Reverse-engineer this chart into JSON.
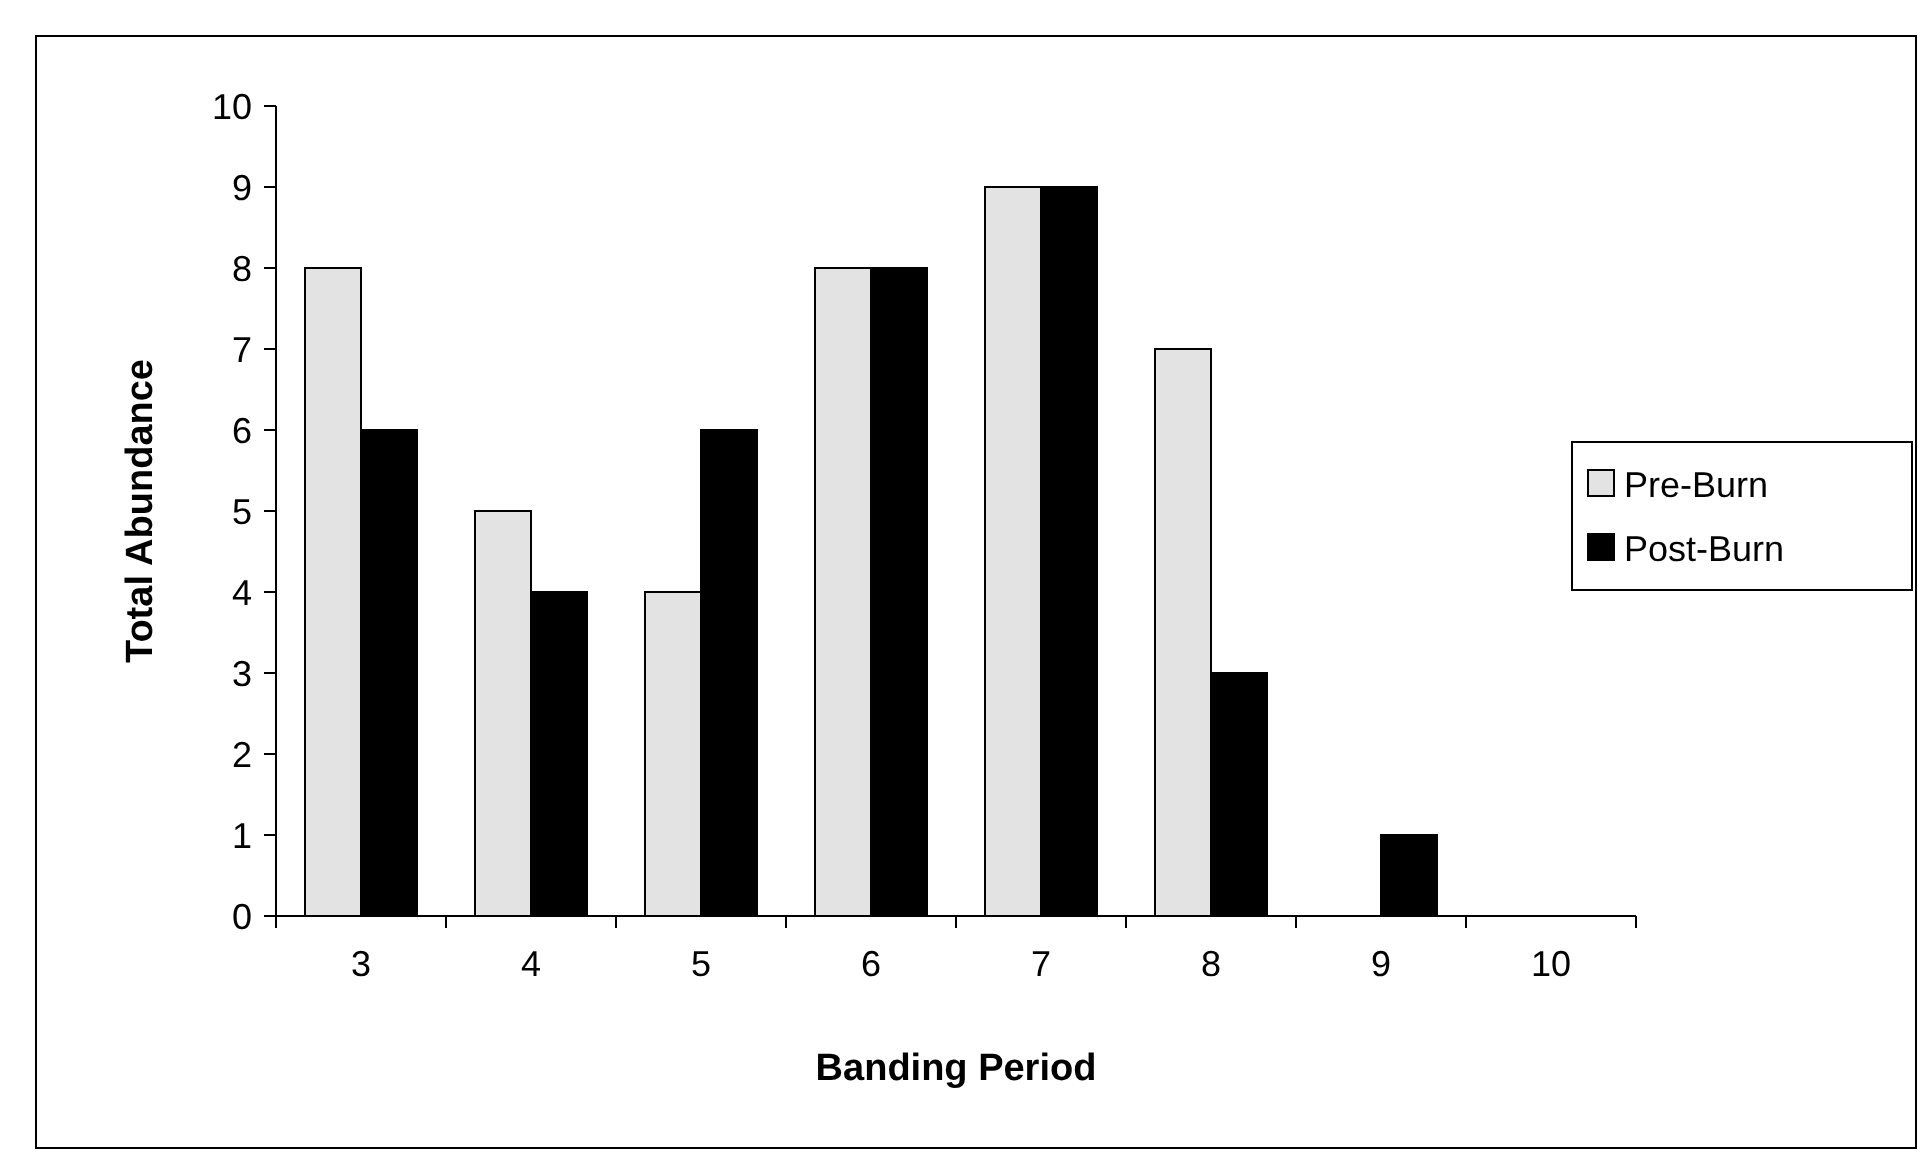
{
  "chart_data": {
    "type": "bar",
    "categories": [
      "3",
      "4",
      "5",
      "6",
      "7",
      "8",
      "9",
      "10"
    ],
    "series": [
      {
        "name": "Pre-Burn",
        "color": "#e3e3e3",
        "values": [
          8,
          5,
          4,
          8,
          9,
          7,
          0,
          0
        ]
      },
      {
        "name": "Post-Burn",
        "color": "#000000",
        "values": [
          6,
          4,
          6,
          8,
          9,
          3,
          1,
          0
        ]
      }
    ],
    "xlabel": "Banding Period",
    "ylabel": "Total Abundance",
    "ylim": [
      0,
      10
    ],
    "yticks": [
      0,
      1,
      2,
      3,
      4,
      5,
      6,
      7,
      8,
      9,
      10
    ],
    "legend": "right",
    "grid": false
  }
}
